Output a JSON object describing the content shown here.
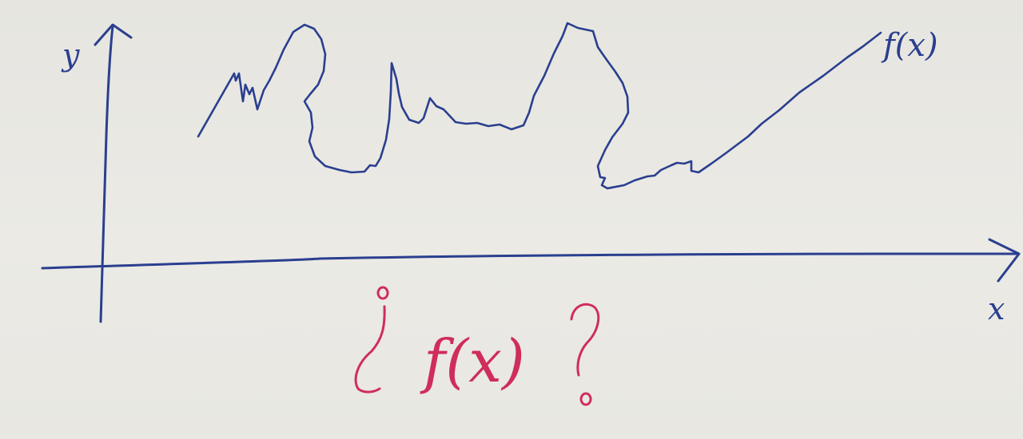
{
  "colors": {
    "paper": "#e9e8e3",
    "blue_ink": "#2a3f8f",
    "red_ink": "#cf2d5a"
  },
  "axes": {
    "y_label": "y",
    "x_label": "x"
  },
  "curve": {
    "label": "f(x)"
  },
  "question": {
    "open_mark": "¿",
    "expression": "f(x)",
    "close_mark": "?"
  }
}
